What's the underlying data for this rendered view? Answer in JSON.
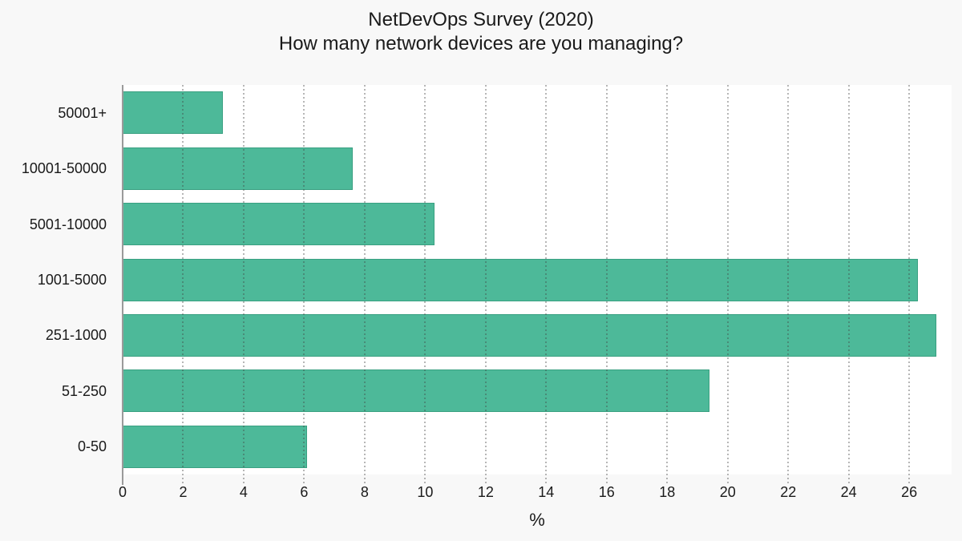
{
  "chart_data": {
    "type": "bar",
    "orientation": "horizontal",
    "title": "NetDevOps Survey (2020)",
    "subtitle": "How many network devices are you managing?",
    "categories": [
      "50001+",
      "10001-50000",
      "5001-10000",
      "1001-5000",
      "251-1000",
      "51-250",
      "0-50"
    ],
    "values": [
      3.3,
      7.6,
      10.3,
      26.3,
      26.9,
      19.4,
      6.1
    ],
    "xlabel": "%",
    "ylabel": "",
    "xlim": [
      0,
      27.4
    ],
    "xticks": [
      0,
      2,
      4,
      6,
      8,
      10,
      12,
      14,
      16,
      18,
      20,
      22,
      24,
      26
    ],
    "grid": "vertical-dotted",
    "legend": "none",
    "colors": {
      "bar_fill": "#4db999",
      "bar_edge": "#2a8c6e",
      "figure_background": "#f8f8f8",
      "plot_background": "#ffffff",
      "grid_line": "#6b6b6b",
      "axis_line": "#9a9a9a",
      "text": "#1a1a1a"
    }
  }
}
